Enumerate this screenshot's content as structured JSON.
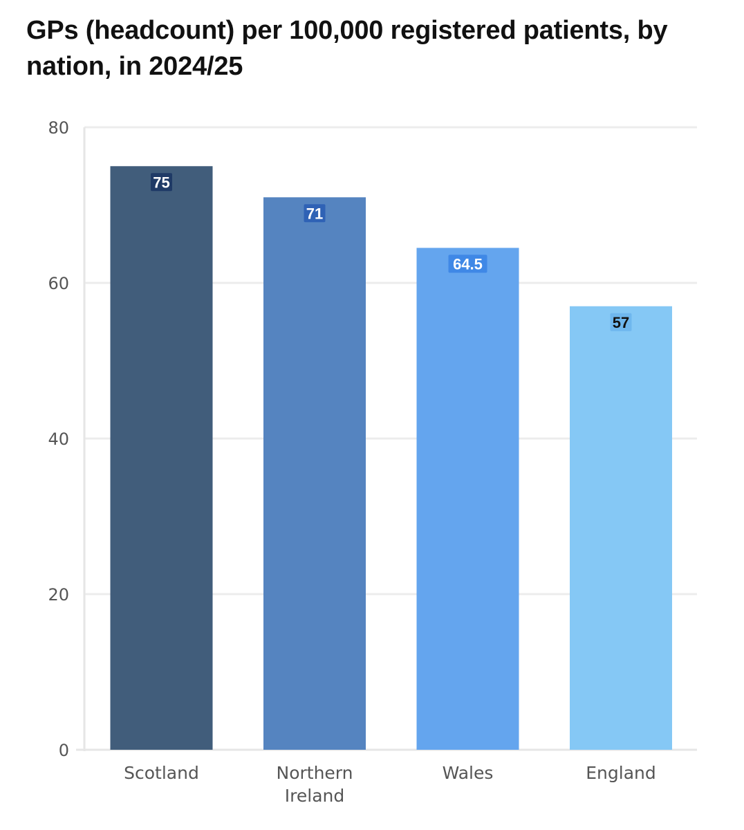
{
  "chart_data": {
    "type": "bar",
    "title": "GPs (headcount) per 100,000 registered patients, by nation, in 2024/25",
    "categories": [
      "Scotland",
      "Northern Ireland",
      "Wales",
      "England"
    ],
    "category_lines": [
      [
        "Scotland"
      ],
      [
        "Northern",
        "Ireland"
      ],
      [
        "Wales"
      ],
      [
        "England"
      ]
    ],
    "values": [
      75,
      71,
      64.5,
      57
    ],
    "value_labels": [
      "75",
      "71",
      "64.5",
      "57"
    ],
    "ylim": [
      0,
      80
    ],
    "yticks": [
      0,
      20,
      40,
      60,
      80
    ],
    "ytick_labels": [
      "0",
      "20",
      "40",
      "60",
      "80"
    ],
    "xlabel": "",
    "ylabel": "",
    "grid": true,
    "legend": "none",
    "bar_colors": [
      "#415d7b",
      "#5584c0",
      "#64a5ee",
      "#85c8f5"
    ],
    "label_colors": [
      "#ffffff",
      "#ffffff",
      "#ffffff",
      "#111111"
    ],
    "label_box_colors": [
      "#1f3a66",
      "#2f62b5",
      "#3f88e6",
      "#6fb7ee"
    ]
  }
}
